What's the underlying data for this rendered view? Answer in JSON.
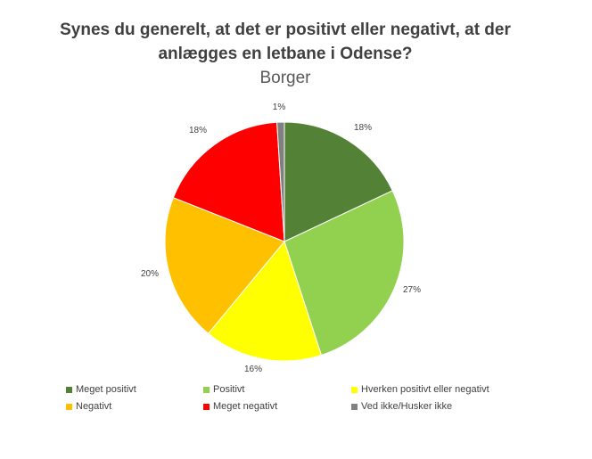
{
  "chart_data": {
    "type": "pie",
    "title": "Synes du generelt, at det er positivt  eller negativt, at der\nanlægges  en letbane i Odense?",
    "subtitle": "Borger",
    "legend_placement": "bottom",
    "slices": [
      {
        "name": "Meget positivt",
        "value": 18,
        "label": "18%",
        "color": "#538135"
      },
      {
        "name": "Positivt",
        "value": 27,
        "label": "27%",
        "color": "#92D050"
      },
      {
        "name": "Hverken positivt eller negativt",
        "value": 16,
        "label": "16%",
        "color": "#FFFF00"
      },
      {
        "name": "Negativt",
        "value": 20,
        "label": "20%",
        "color": "#FFC000"
      },
      {
        "name": "Meget negativt",
        "value": 18,
        "label": "18%",
        "color": "#FF0000"
      },
      {
        "name": "Ved ikke/Husker ikke",
        "value": 1,
        "label": "1%",
        "color": "#808080"
      }
    ]
  }
}
